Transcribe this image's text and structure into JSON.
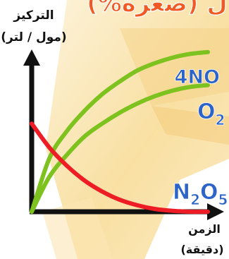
{
  "chart_data": {
    "type": "line",
    "title_fragment": "ل (صغرة%)",
    "ylabel": "التركيز",
    "ylabel_units": "(مول / لتر)",
    "xlabel": "الزمن",
    "xlabel_units": "(دقيقة)",
    "series": [
      {
        "name": "4NO",
        "name_main": "4NO",
        "name_sub": "",
        "color": "#7dc21e",
        "trend": "increasing",
        "points": [
          [
            0,
            0
          ],
          [
            10,
            0.29
          ],
          [
            20,
            0.44
          ],
          [
            30,
            0.55
          ],
          [
            40,
            0.64
          ],
          [
            50,
            0.71
          ],
          [
            60,
            0.77
          ],
          [
            70,
            0.81
          ],
          [
            80,
            0.84
          ],
          [
            90,
            0.86
          ],
          [
            100,
            0.87
          ]
        ]
      },
      {
        "name": "O2",
        "name_main": "O",
        "name_sub": "2",
        "color": "#7dc21e",
        "trend": "increasing",
        "points": [
          [
            0,
            0
          ],
          [
            10,
            0.19
          ],
          [
            20,
            0.31
          ],
          [
            30,
            0.41
          ],
          [
            40,
            0.48
          ],
          [
            50,
            0.54
          ],
          [
            60,
            0.59
          ],
          [
            70,
            0.63
          ],
          [
            80,
            0.66
          ],
          [
            90,
            0.68
          ],
          [
            100,
            0.69
          ]
        ]
      },
      {
        "name": "N2O5",
        "name_main": "N",
        "name_mid": "2",
        "name_after": "O",
        "name_sub": "5",
        "color": "#ee1c24",
        "trend": "decreasing",
        "points": [
          [
            0,
            0.48
          ],
          [
            10,
            0.35
          ],
          [
            20,
            0.25
          ],
          [
            30,
            0.17
          ],
          [
            40,
            0.11
          ],
          [
            50,
            0.065
          ],
          [
            60,
            0.035
          ],
          [
            70,
            0.015
          ],
          [
            80,
            0.005
          ],
          [
            90,
            0.0
          ],
          [
            100,
            0.0
          ]
        ]
      }
    ]
  }
}
